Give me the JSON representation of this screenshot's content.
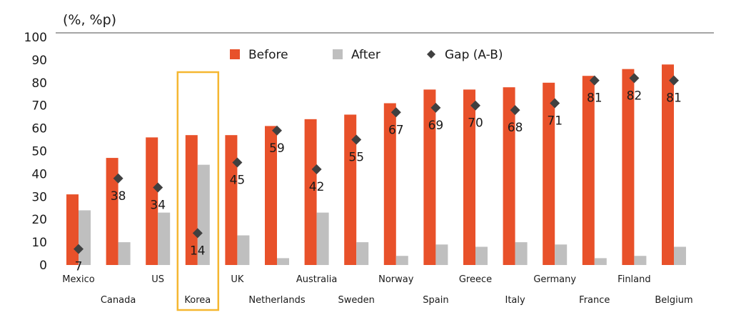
{
  "chart_data": {
    "type": "bar",
    "unit_label": "(%, %p)",
    "categories": [
      "Mexico",
      "Canada",
      "US",
      "Korea",
      "UK",
      "Netherlands",
      "Australia",
      "Sweden",
      "Norway",
      "Spain",
      "Greece",
      "Italy",
      "Germany",
      "France",
      "Finland",
      "Belgium"
    ],
    "series": [
      {
        "name": "Before",
        "color": "#E8512A",
        "values": [
          31,
          47,
          56,
          57,
          57,
          61,
          64,
          66,
          71,
          77,
          77,
          78,
          80,
          83,
          86,
          88
        ]
      },
      {
        "name": "After",
        "color": "#BFBFBF",
        "values": [
          24,
          10,
          23,
          44,
          13,
          3,
          23,
          10,
          4,
          9,
          8,
          10,
          9,
          3,
          4,
          8
        ]
      },
      {
        "name": "Gap (A-B)",
        "color": "#404040",
        "marker": "diamond",
        "values": [
          7,
          38,
          34,
          14,
          45,
          59,
          42,
          55,
          67,
          69,
          70,
          68,
          71,
          81,
          82,
          81
        ]
      }
    ],
    "ylim": [
      0,
      100
    ],
    "yticks": [
      0,
      10,
      20,
      30,
      40,
      50,
      60,
      70,
      80,
      90,
      100
    ],
    "highlight_category": "Korea",
    "highlight_color": "#F5B731",
    "legend_position": "top"
  }
}
